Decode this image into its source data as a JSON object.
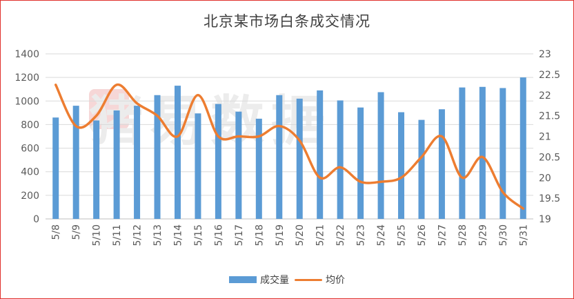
{
  "chart_data": {
    "type": "bar",
    "title": "北京某市场白条成交情况",
    "watermark": "猪易数据",
    "categories": [
      "5/8",
      "5/9",
      "5/10",
      "5/11",
      "5/12",
      "5/13",
      "5/14",
      "5/15",
      "5/16",
      "5/17",
      "5/18",
      "5/19",
      "5/20",
      "5/21",
      "5/22",
      "5/23",
      "5/24",
      "5/25",
      "5/26",
      "5/27",
      "5/28",
      "5/29",
      "5/30",
      "5/31"
    ],
    "series": [
      {
        "name": "成交量",
        "type": "bar",
        "axis": "left",
        "color": "#5b9bd5",
        "values": [
          860,
          960,
          835,
          920,
          960,
          1050,
          1130,
          895,
          975,
          910,
          850,
          1050,
          1020,
          1090,
          1005,
          945,
          1075,
          905,
          840,
          930,
          1115,
          1120,
          1110,
          1200
        ]
      },
      {
        "name": "均价",
        "type": "line",
        "axis": "right",
        "color": "#ed7d31",
        "values": [
          22.25,
          21.25,
          21.5,
          22.25,
          21.8,
          21.5,
          21.0,
          22.0,
          21.0,
          21.0,
          21.0,
          21.25,
          20.9,
          20.0,
          20.25,
          19.9,
          19.9,
          20.0,
          20.5,
          21.0,
          20.0,
          20.5,
          19.65,
          19.25
        ]
      }
    ],
    "y_left": {
      "min": 0,
      "max": 1400,
      "ticks": [
        0,
        200,
        400,
        600,
        800,
        1000,
        1200,
        1400
      ]
    },
    "y_right": {
      "min": 19,
      "max": 23,
      "ticks": [
        "19",
        "19.5",
        "20",
        "20.5",
        "21",
        "21.5",
        "22",
        "22.5",
        "23"
      ]
    },
    "grid": true,
    "legend_position": "bottom"
  }
}
